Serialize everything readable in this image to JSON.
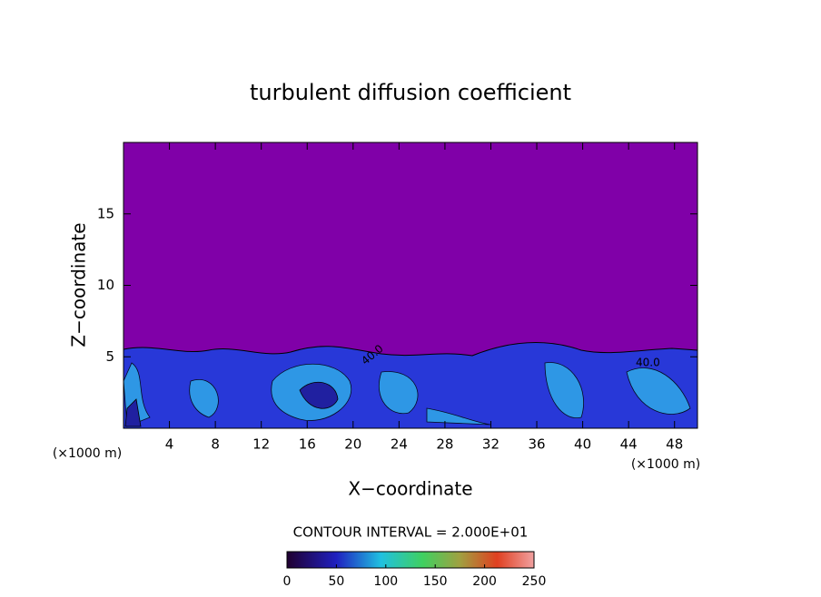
{
  "chart_data": {
    "type": "contour",
    "title": "turbulent diffusion coefficient",
    "x_label": "X−coordinate",
    "y_label": "Z−coordinate",
    "x_unit_label": "(×1000 m)",
    "y_unit_label": "(×1000 m)",
    "xlim": [
      0,
      50
    ],
    "xticks": [
      4,
      8,
      12,
      16,
      20,
      24,
      28,
      32,
      36,
      40,
      44,
      48
    ],
    "ylim": [
      0,
      20
    ],
    "yticks": [
      5,
      10,
      15
    ],
    "contour_interval": "CONTOUR INTERVAL = 2.000E+01",
    "contour_labels": [
      "40.0",
      "40.0"
    ],
    "colorbar_lim": [
      0,
      250
    ],
    "colorbar_ticks": [
      0,
      50,
      100,
      150,
      200,
      250
    ]
  }
}
